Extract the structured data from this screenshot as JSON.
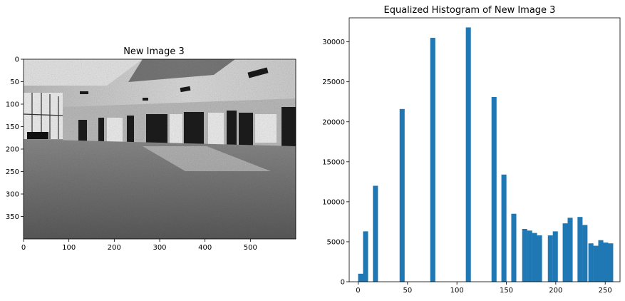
{
  "chart_data": [
    {
      "type": "image",
      "title": "New Image 3",
      "xticks": [
        "0",
        "100",
        "200",
        "300",
        "400",
        "500"
      ],
      "yticks": [
        "0",
        "50",
        "100",
        "150",
        "200",
        "250",
        "300",
        "350"
      ],
      "xlim": [
        0,
        600
      ],
      "ylim": [
        400,
        0
      ]
    },
    {
      "type": "bar",
      "title": "Equalized Histogram of New Image 3",
      "xticks": [
        "0",
        "50",
        "100",
        "150",
        "200",
        "250"
      ],
      "yticks": [
        "0",
        "5000",
        "10000",
        "15000",
        "20000",
        "25000",
        "30000"
      ],
      "xlim": [
        -9,
        265
      ],
      "ylim": [
        0,
        33000
      ],
      "bar_color": "#1f77b4",
      "bins": [
        {
          "x": 0,
          "y": 1000
        },
        {
          "x": 5,
          "y": 6300
        },
        {
          "x": 15,
          "y": 12000
        },
        {
          "x": 42,
          "y": 21600
        },
        {
          "x": 73,
          "y": 30500
        },
        {
          "x": 109,
          "y": 31800
        },
        {
          "x": 135,
          "y": 23100
        },
        {
          "x": 145,
          "y": 13400
        },
        {
          "x": 155,
          "y": 8500
        },
        {
          "x": 166,
          "y": 6600
        },
        {
          "x": 171,
          "y": 6400
        },
        {
          "x": 176,
          "y": 6100
        },
        {
          "x": 181,
          "y": 5800
        },
        {
          "x": 192,
          "y": 5800
        },
        {
          "x": 197,
          "y": 6300
        },
        {
          "x": 207,
          "y": 7300
        },
        {
          "x": 212,
          "y": 8000
        },
        {
          "x": 222,
          "y": 8100
        },
        {
          "x": 227,
          "y": 7100
        },
        {
          "x": 233,
          "y": 4800
        },
        {
          "x": 238,
          "y": 4500
        },
        {
          "x": 243,
          "y": 5200
        },
        {
          "x": 248,
          "y": 4900
        },
        {
          "x": 253,
          "y": 4800
        }
      ]
    }
  ]
}
